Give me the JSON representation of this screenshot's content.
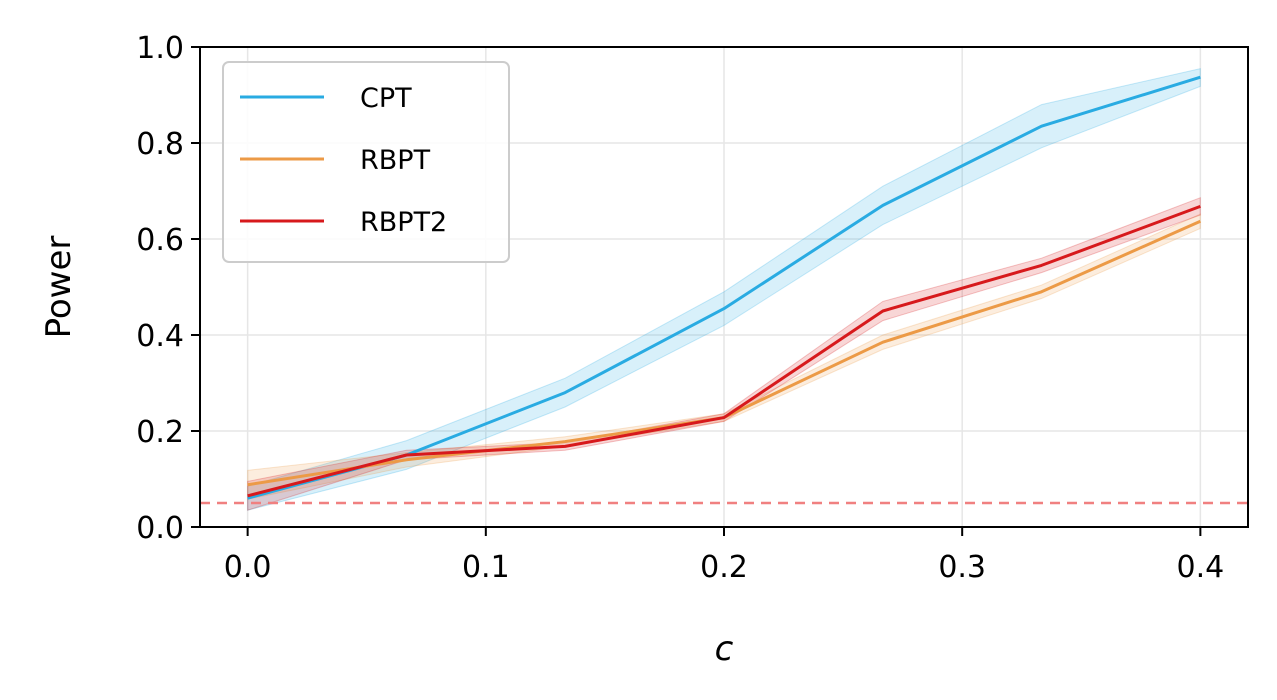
{
  "chart_data": {
    "type": "line",
    "xlabel": "c",
    "ylabel": "Power",
    "xlim": [
      -0.02,
      0.42
    ],
    "ylim": [
      0.0,
      1.0
    ],
    "xticks": [
      "0.0",
      "0.1",
      "0.2",
      "0.3",
      "0.4"
    ],
    "yticks": [
      "0.0",
      "0.2",
      "0.4",
      "0.6",
      "0.8",
      "1.0"
    ],
    "grid": true,
    "legend_position": "top-left",
    "x": [
      0.0,
      0.0667,
      0.1333,
      0.2,
      0.2667,
      0.3333,
      0.4
    ],
    "reference_line": {
      "y": 0.05,
      "style": "dashed",
      "color": "#f08080"
    },
    "series": [
      {
        "name": "CPT",
        "color": "#29abe2",
        "values": [
          0.06,
          0.15,
          0.28,
          0.455,
          0.67,
          0.835,
          0.937
        ],
        "lower": [
          0.035,
          0.12,
          0.25,
          0.42,
          0.63,
          0.79,
          0.918
        ],
        "upper": [
          0.085,
          0.18,
          0.31,
          0.49,
          0.71,
          0.88,
          0.955
        ]
      },
      {
        "name": "RBPT",
        "color": "#ec9a46",
        "values": [
          0.088,
          0.14,
          0.178,
          0.228,
          0.385,
          0.49,
          0.637
        ],
        "lower": [
          0.058,
          0.125,
          0.168,
          0.22,
          0.37,
          0.476,
          0.622
        ],
        "upper": [
          0.118,
          0.155,
          0.188,
          0.236,
          0.4,
          0.504,
          0.652
        ]
      },
      {
        "name": "RBPT2",
        "color": "#d7191c",
        "values": [
          0.065,
          0.15,
          0.168,
          0.228,
          0.45,
          0.545,
          0.668
        ],
        "lower": [
          0.035,
          0.14,
          0.16,
          0.22,
          0.43,
          0.53,
          0.65
        ],
        "upper": [
          0.095,
          0.16,
          0.176,
          0.236,
          0.47,
          0.56,
          0.686
        ]
      }
    ]
  }
}
